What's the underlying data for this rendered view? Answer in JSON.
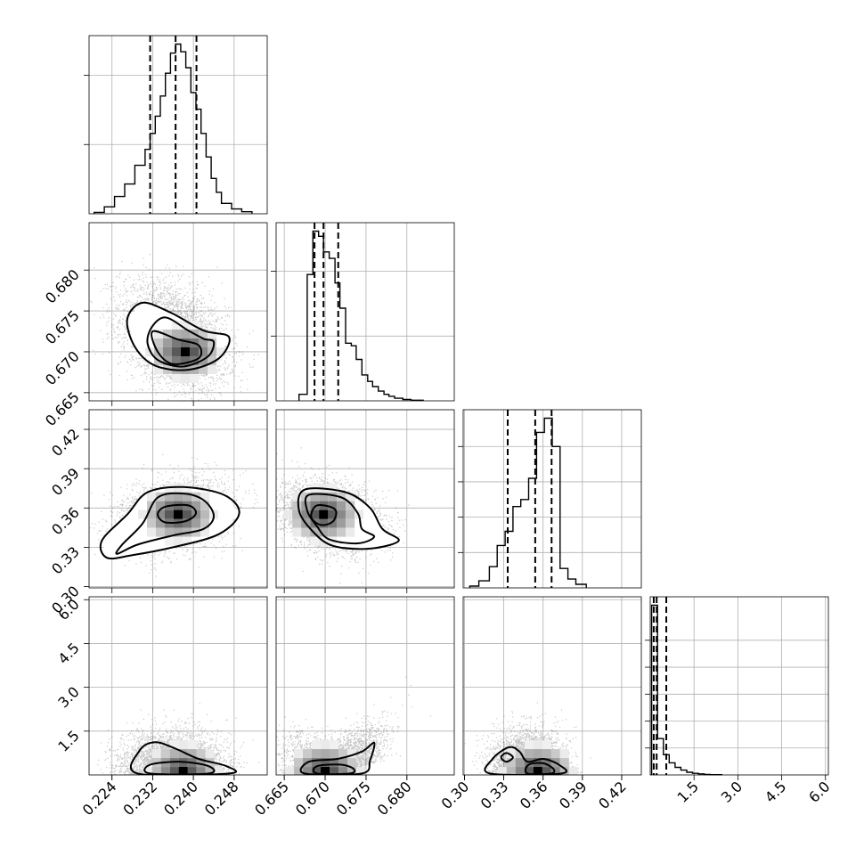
{
  "chart_data": {
    "type": "corner",
    "grid": true,
    "quantiles": [
      0.16,
      0.5,
      0.84
    ],
    "parameters": [
      {
        "ticks": [
          "0.224",
          "0.232",
          "0.240",
          "0.248"
        ],
        "tick_values": [
          0.224,
          0.232,
          0.24,
          0.248
        ],
        "range": [
          0.2195,
          0.2545
        ],
        "quantile_values": [
          0.2315,
          0.2365,
          0.2406
        ],
        "hist_bins": [
          0.2205,
          0.2225,
          0.2245,
          0.2265,
          0.2285,
          0.2305,
          0.2315,
          0.2325,
          0.2335,
          0.2345,
          0.2355,
          0.2365,
          0.2375,
          0.2385,
          0.2395,
          0.2405,
          0.2415,
          0.2425,
          0.2435,
          0.2445,
          0.2455,
          0.2475,
          0.2495,
          0.2515
        ],
        "hist_counts": [
          0.02,
          0.1,
          0.25,
          0.43,
          0.7,
          0.93,
          1.16,
          1.41,
          1.7,
          2.03,
          2.32,
          2.45,
          2.34,
          2.11,
          1.75,
          1.51,
          1.16,
          0.82,
          0.51,
          0.31,
          0.15,
          0.07,
          0.03
        ],
        "hist_yticks": [
          1,
          2
        ]
      },
      {
        "ticks": [
          "0.665",
          "0.670",
          "0.675",
          "0.680"
        ],
        "tick_values": [
          0.665,
          0.67,
          0.675,
          0.68
        ],
        "range": [
          0.664,
          0.6858
        ],
        "quantile_values": [
          0.6687,
          0.6698,
          0.6716
        ],
        "hist_bins": [
          0.6668,
          0.6678,
          0.6685,
          0.6692,
          0.6698,
          0.6705,
          0.6712,
          0.6718,
          0.6725,
          0.6732,
          0.6738,
          0.6745,
          0.6752,
          0.6758,
          0.6765,
          0.6772,
          0.6778,
          0.6785,
          0.6795,
          0.6805,
          0.682
        ],
        "hist_counts": [
          0.1,
          1.95,
          2.62,
          2.54,
          2.3,
          2.2,
          1.82,
          1.43,
          0.89,
          0.85,
          0.64,
          0.4,
          0.3,
          0.22,
          0.15,
          0.1,
          0.07,
          0.04,
          0.02,
          0.01
        ],
        "hist_yticks": [
          1,
          2,
          3
        ]
      },
      {
        "ticks": [
          "0.30",
          "0.33",
          "0.36",
          "0.39",
          "0.42"
        ],
        "tick_values": [
          0.3,
          0.33,
          0.36,
          0.39,
          0.42
        ],
        "range": [
          0.299,
          0.435
        ],
        "quantile_values": [
          0.333,
          0.354,
          0.3665
        ],
        "hist_bins": [
          0.304,
          0.311,
          0.319,
          0.325,
          0.331,
          0.337,
          0.343,
          0.349,
          0.355,
          0.361,
          0.367,
          0.373,
          0.379,
          0.385,
          0.393
        ],
        "hist_counts": [
          0.05,
          0.2,
          0.6,
          1.2,
          1.6,
          2.3,
          2.5,
          3.1,
          4.4,
          4.8,
          4.0,
          0.55,
          0.25,
          0.1
        ],
        "hist_yticks": [
          1,
          2,
          3,
          4
        ]
      },
      {
        "ticks": [
          "1.5",
          "3.0",
          "4.5",
          "6.0"
        ],
        "tick_values": [
          1.5,
          3.0,
          4.5,
          6.0
        ],
        "range": [
          0.0,
          6.1
        ],
        "quantile_values": [
          0.12,
          0.22,
          0.55
        ],
        "hist_bins": [
          0.05,
          0.25,
          0.45,
          0.65,
          0.85,
          1.05,
          1.25,
          1.45,
          1.65,
          1.85,
          2.05,
          2.45
        ],
        "hist_counts": [
          6.3,
          1.35,
          0.75,
          0.45,
          0.28,
          0.18,
          0.1,
          0.06,
          0.04,
          0.02,
          0.01
        ],
        "hist_yticks": [
          1,
          2,
          3,
          4,
          5
        ]
      }
    ],
    "pairs": [
      {
        "row": 1,
        "col": 0,
        "mean": [
          0.236,
          0.672
        ],
        "sigma": [
          0.0052,
          0.0032
        ],
        "rho": -0.35,
        "peak": [
          0.2384,
          0.67
        ],
        "contours": [
          [
            [
              0.2345,
              0.6742
            ],
            [
              0.239,
              0.6726
            ],
            [
              0.242,
              0.6716
            ],
            [
              0.244,
              0.6712
            ],
            [
              0.2428,
              0.6694
            ],
            [
              0.238,
              0.6682
            ],
            [
              0.233,
              0.669
            ],
            [
              0.231,
              0.671
            ],
            [
              0.2318,
              0.673
            ]
          ],
          [
            [
              0.23,
              0.676
            ],
            [
              0.2355,
              0.6748
            ],
            [
              0.242,
              0.6726
            ],
            [
              0.247,
              0.6718
            ],
            [
              0.245,
              0.6692
            ],
            [
              0.239,
              0.6678
            ],
            [
              0.2325,
              0.6683
            ],
            [
              0.2285,
              0.6706
            ],
            [
              0.227,
              0.674
            ]
          ],
          [
            [
              0.232,
              0.6725
            ],
            [
              0.237,
              0.6715
            ],
            [
              0.241,
              0.6708
            ],
            [
              0.241,
              0.6692
            ],
            [
              0.236,
              0.6685
            ],
            [
              0.233,
              0.67
            ]
          ]
        ]
      },
      {
        "row": 2,
        "col": 0,
        "mean": [
          0.236,
          0.355
        ],
        "sigma": [
          0.005,
          0.013
        ],
        "rho": 0.25,
        "peak": [
          0.237,
          0.355
        ],
        "contours": [
          [
            [
              0.233,
              0.368
            ],
            [
              0.238,
              0.371
            ],
            [
              0.242,
              0.366
            ],
            [
              0.244,
              0.354
            ],
            [
              0.242,
              0.344
            ],
            [
              0.236,
              0.339
            ],
            [
              0.229,
              0.332
            ],
            [
              0.225,
              0.325
            ],
            [
              0.226,
              0.332
            ],
            [
              0.23,
              0.348
            ]
          ],
          [
            [
              0.231,
              0.372
            ],
            [
              0.238,
              0.376
            ],
            [
              0.246,
              0.37
            ],
            [
              0.249,
              0.356
            ],
            [
              0.245,
              0.34
            ],
            [
              0.236,
              0.33
            ],
            [
              0.228,
              0.324
            ],
            [
              0.223,
              0.322
            ],
            [
              0.222,
              0.335
            ],
            [
              0.227,
              0.355
            ]
          ],
          [
            [
              0.2345,
              0.361
            ],
            [
              0.239,
              0.362
            ],
            [
              0.2405,
              0.356
            ],
            [
              0.2385,
              0.35
            ],
            [
              0.2345,
              0.349
            ],
            [
              0.233,
              0.355
            ]
          ]
        ]
      },
      {
        "row": 2,
        "col": 1,
        "mean": [
          0.6705,
          0.354
        ],
        "sigma": [
          0.003,
          0.013
        ],
        "rho": -0.3,
        "peak": [
          0.6698,
          0.355
        ],
        "contours": [
          [
            [
              0.668,
              0.37
            ],
            [
              0.672,
              0.368
            ],
            [
              0.674,
              0.356
            ],
            [
              0.6745,
              0.344
            ],
            [
              0.676,
              0.338
            ],
            [
              0.674,
              0.333
            ],
            [
              0.6705,
              0.336
            ],
            [
              0.669,
              0.346
            ],
            [
              0.6678,
              0.358
            ]
          ],
          [
            [
              0.6675,
              0.374
            ],
            [
              0.6725,
              0.372
            ],
            [
              0.6755,
              0.36
            ],
            [
              0.677,
              0.344
            ],
            [
              0.679,
              0.335
            ],
            [
              0.6755,
              0.329
            ],
            [
              0.671,
              0.331
            ],
            [
              0.6685,
              0.342
            ],
            [
              0.6668,
              0.358
            ]
          ],
          [
            [
              0.669,
              0.362
            ],
            [
              0.6712,
              0.359
            ],
            [
              0.671,
              0.35
            ],
            [
              0.6695,
              0.347
            ],
            [
              0.6683,
              0.353
            ]
          ]
        ]
      },
      {
        "row": 3,
        "col": 0,
        "mean": [
          0.236,
          0.35
        ],
        "sigma": [
          0.005,
          0.6
        ],
        "rho": -0.1,
        "peak": [
          0.238,
          0.12
        ],
        "contours": [
          [
            [
              0.229,
              0.05
            ],
            [
              0.2295,
              0.85
            ],
            [
              0.2325,
              1.12
            ],
            [
              0.2365,
              0.9
            ],
            [
              0.241,
              0.55
            ],
            [
              0.2465,
              0.3
            ],
            [
              0.247,
              0.05
            ]
          ],
          [
            [
              0.2315,
              0.05
            ],
            [
              0.2315,
              0.35
            ],
            [
              0.2375,
              0.45
            ],
            [
              0.243,
              0.3
            ],
            [
              0.243,
              0.05
            ]
          ]
        ]
      },
      {
        "row": 3,
        "col": 1,
        "mean": [
          0.671,
          0.4
        ],
        "sigma": [
          0.0028,
          0.55
        ],
        "rho": 0.55,
        "peak": [
          0.67,
          0.12
        ],
        "contours": [
          [
            [
              0.6675,
              0.05
            ],
            [
              0.668,
              0.45
            ],
            [
              0.6715,
              0.55
            ],
            [
              0.6745,
              0.8
            ],
            [
              0.676,
              1.1
            ],
            [
              0.6755,
              0.5
            ],
            [
              0.6745,
              0.05
            ]
          ],
          [
            [
              0.669,
              0.05
            ],
            [
              0.669,
              0.3
            ],
            [
              0.672,
              0.35
            ],
            [
              0.6735,
              0.2
            ],
            [
              0.673,
              0.05
            ]
          ]
        ]
      },
      {
        "row": 3,
        "col": 2,
        "mean": [
          0.348,
          0.35
        ],
        "sigma": [
          0.013,
          0.6
        ],
        "rho": 0.0,
        "peak": [
          0.356,
          0.12
        ],
        "contours": [
          [
            [
              0.3195,
              0.05
            ],
            [
              0.3215,
              0.55
            ],
            [
              0.334,
              0.95
            ],
            [
              0.342,
              0.8
            ],
            [
              0.348,
              0.45
            ],
            [
              0.36,
              0.55
            ],
            [
              0.372,
              0.35
            ],
            [
              0.374,
              0.05
            ]
          ],
          [
            [
              0.348,
              0.05
            ],
            [
              0.349,
              0.35
            ],
            [
              0.36,
              0.4
            ],
            [
              0.368,
              0.2
            ],
            [
              0.366,
              0.05
            ]
          ],
          [
            [
              0.328,
              0.6
            ],
            [
              0.332,
              0.75
            ],
            [
              0.337,
              0.6
            ],
            [
              0.332,
              0.45
            ]
          ]
        ]
      }
    ]
  }
}
